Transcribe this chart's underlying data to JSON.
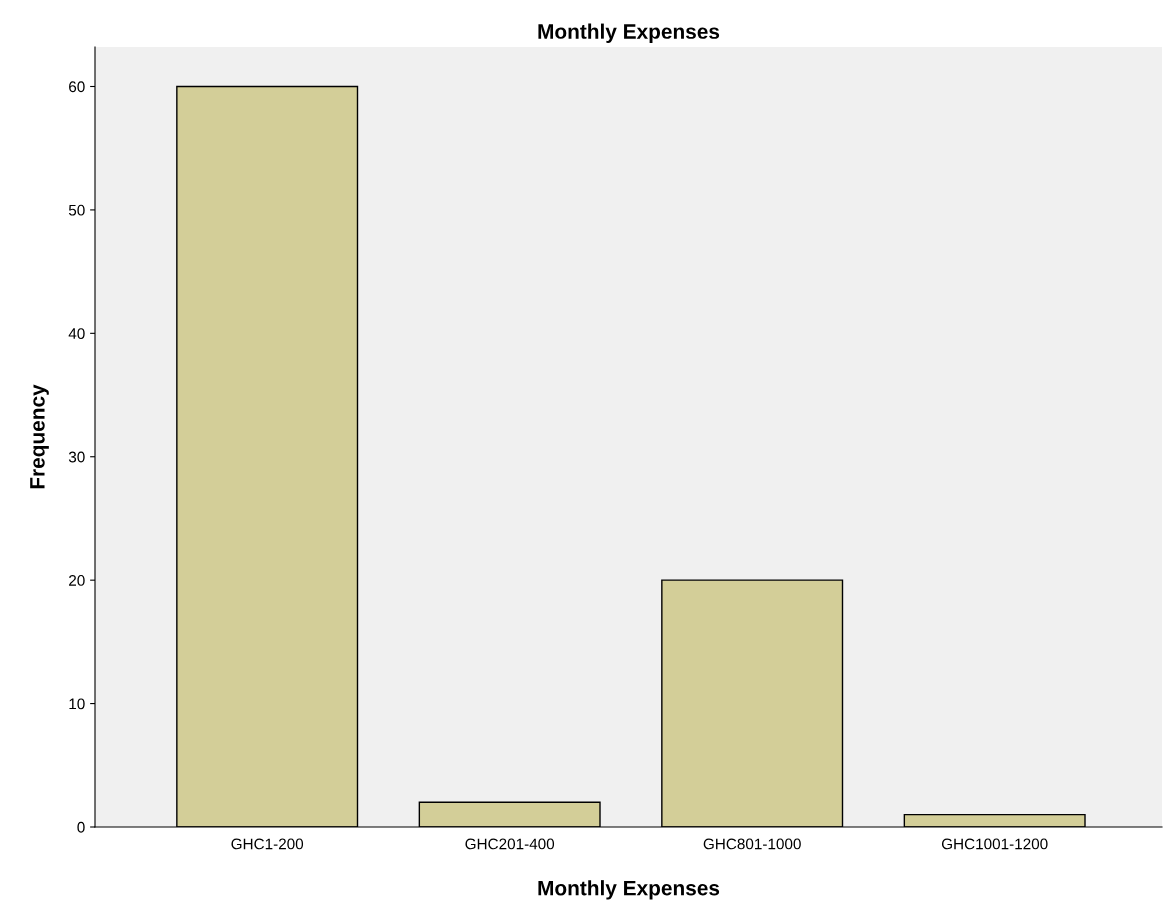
{
  "chart_data": {
    "type": "bar",
    "title": "Monthly Expenses",
    "xlabel": "Monthly Expenses",
    "ylabel": "Frequency",
    "categories": [
      "GHC1-200",
      "GHC201-400",
      "GHC801-1000",
      "GHC1001-1200"
    ],
    "values": [
      60,
      2,
      20,
      1
    ],
    "color": "#d3ce98",
    "ylim": [
      0,
      63.2
    ],
    "yticks": [
      0,
      10,
      20,
      30,
      40,
      50,
      60
    ],
    "grid": false
  }
}
